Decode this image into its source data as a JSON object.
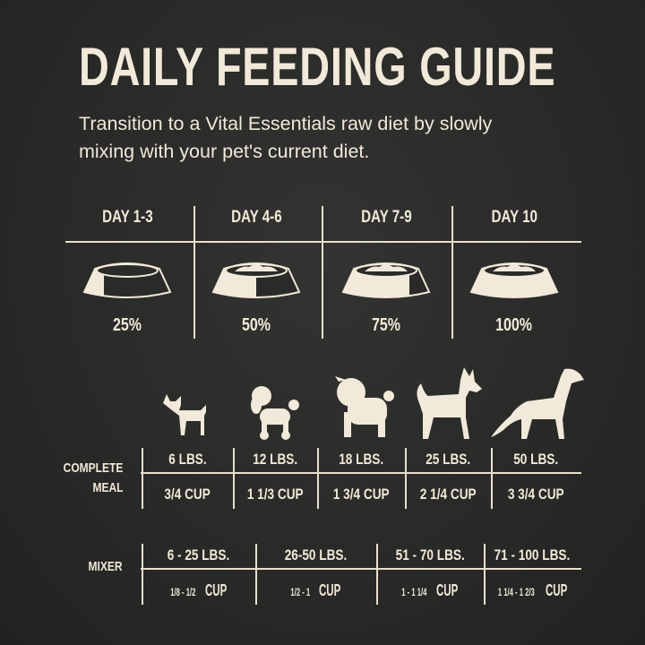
{
  "title": "DAILY FEEDING GUIDE",
  "subtitle": [
    "Transition to a Vital Essentials raw diet by slowly",
    "mixing with your pet's current diet."
  ],
  "transition": [
    {
      "day": "DAY 1-3",
      "percent": "25%",
      "fill": 0.25
    },
    {
      "day": "DAY 4-6",
      "percent": "50%",
      "fill": 0.5
    },
    {
      "day": "DAY 7-9",
      "percent": "75%",
      "fill": 0.75
    },
    {
      "day": "DAY 10",
      "percent": "100%",
      "fill": 1.0
    }
  ],
  "icons": {
    "bowl": "dog-bowl-icon",
    "dogs": [
      "chihuahua-icon",
      "poodle-icon",
      "pug-icon",
      "husky-icon",
      "retriever-icon"
    ]
  },
  "complete_meal": {
    "label": [
      "COMPLETE",
      "MEAL"
    ],
    "weights": [
      "6 LBS.",
      "12 LBS.",
      "18 LBS.",
      "25 LBS.",
      "50 LBS."
    ],
    "amounts": [
      "3/4 CUP",
      "1 1/3 CUP",
      "1 3/4 CUP",
      "2 1/4 CUP",
      "3 3/4 CUP"
    ]
  },
  "mixer": {
    "label": "MIXER",
    "weights": [
      "6 - 25 LBS.",
      "26-50 LBS.",
      "51 - 70 LBS.",
      "71 - 100 LBS."
    ],
    "amounts": [
      {
        "range": "1/8 - 1/2",
        "unit": "CUP"
      },
      {
        "range": "1/2 - 1",
        "unit": "CUP"
      },
      {
        "range": "1 - 1 1/4",
        "unit": "CUP"
      },
      {
        "range": "1 1/4 - 1 2/3",
        "unit": "CUP"
      }
    ]
  },
  "colors": {
    "background": "#2a2a29",
    "text": "#f1e9d9"
  }
}
